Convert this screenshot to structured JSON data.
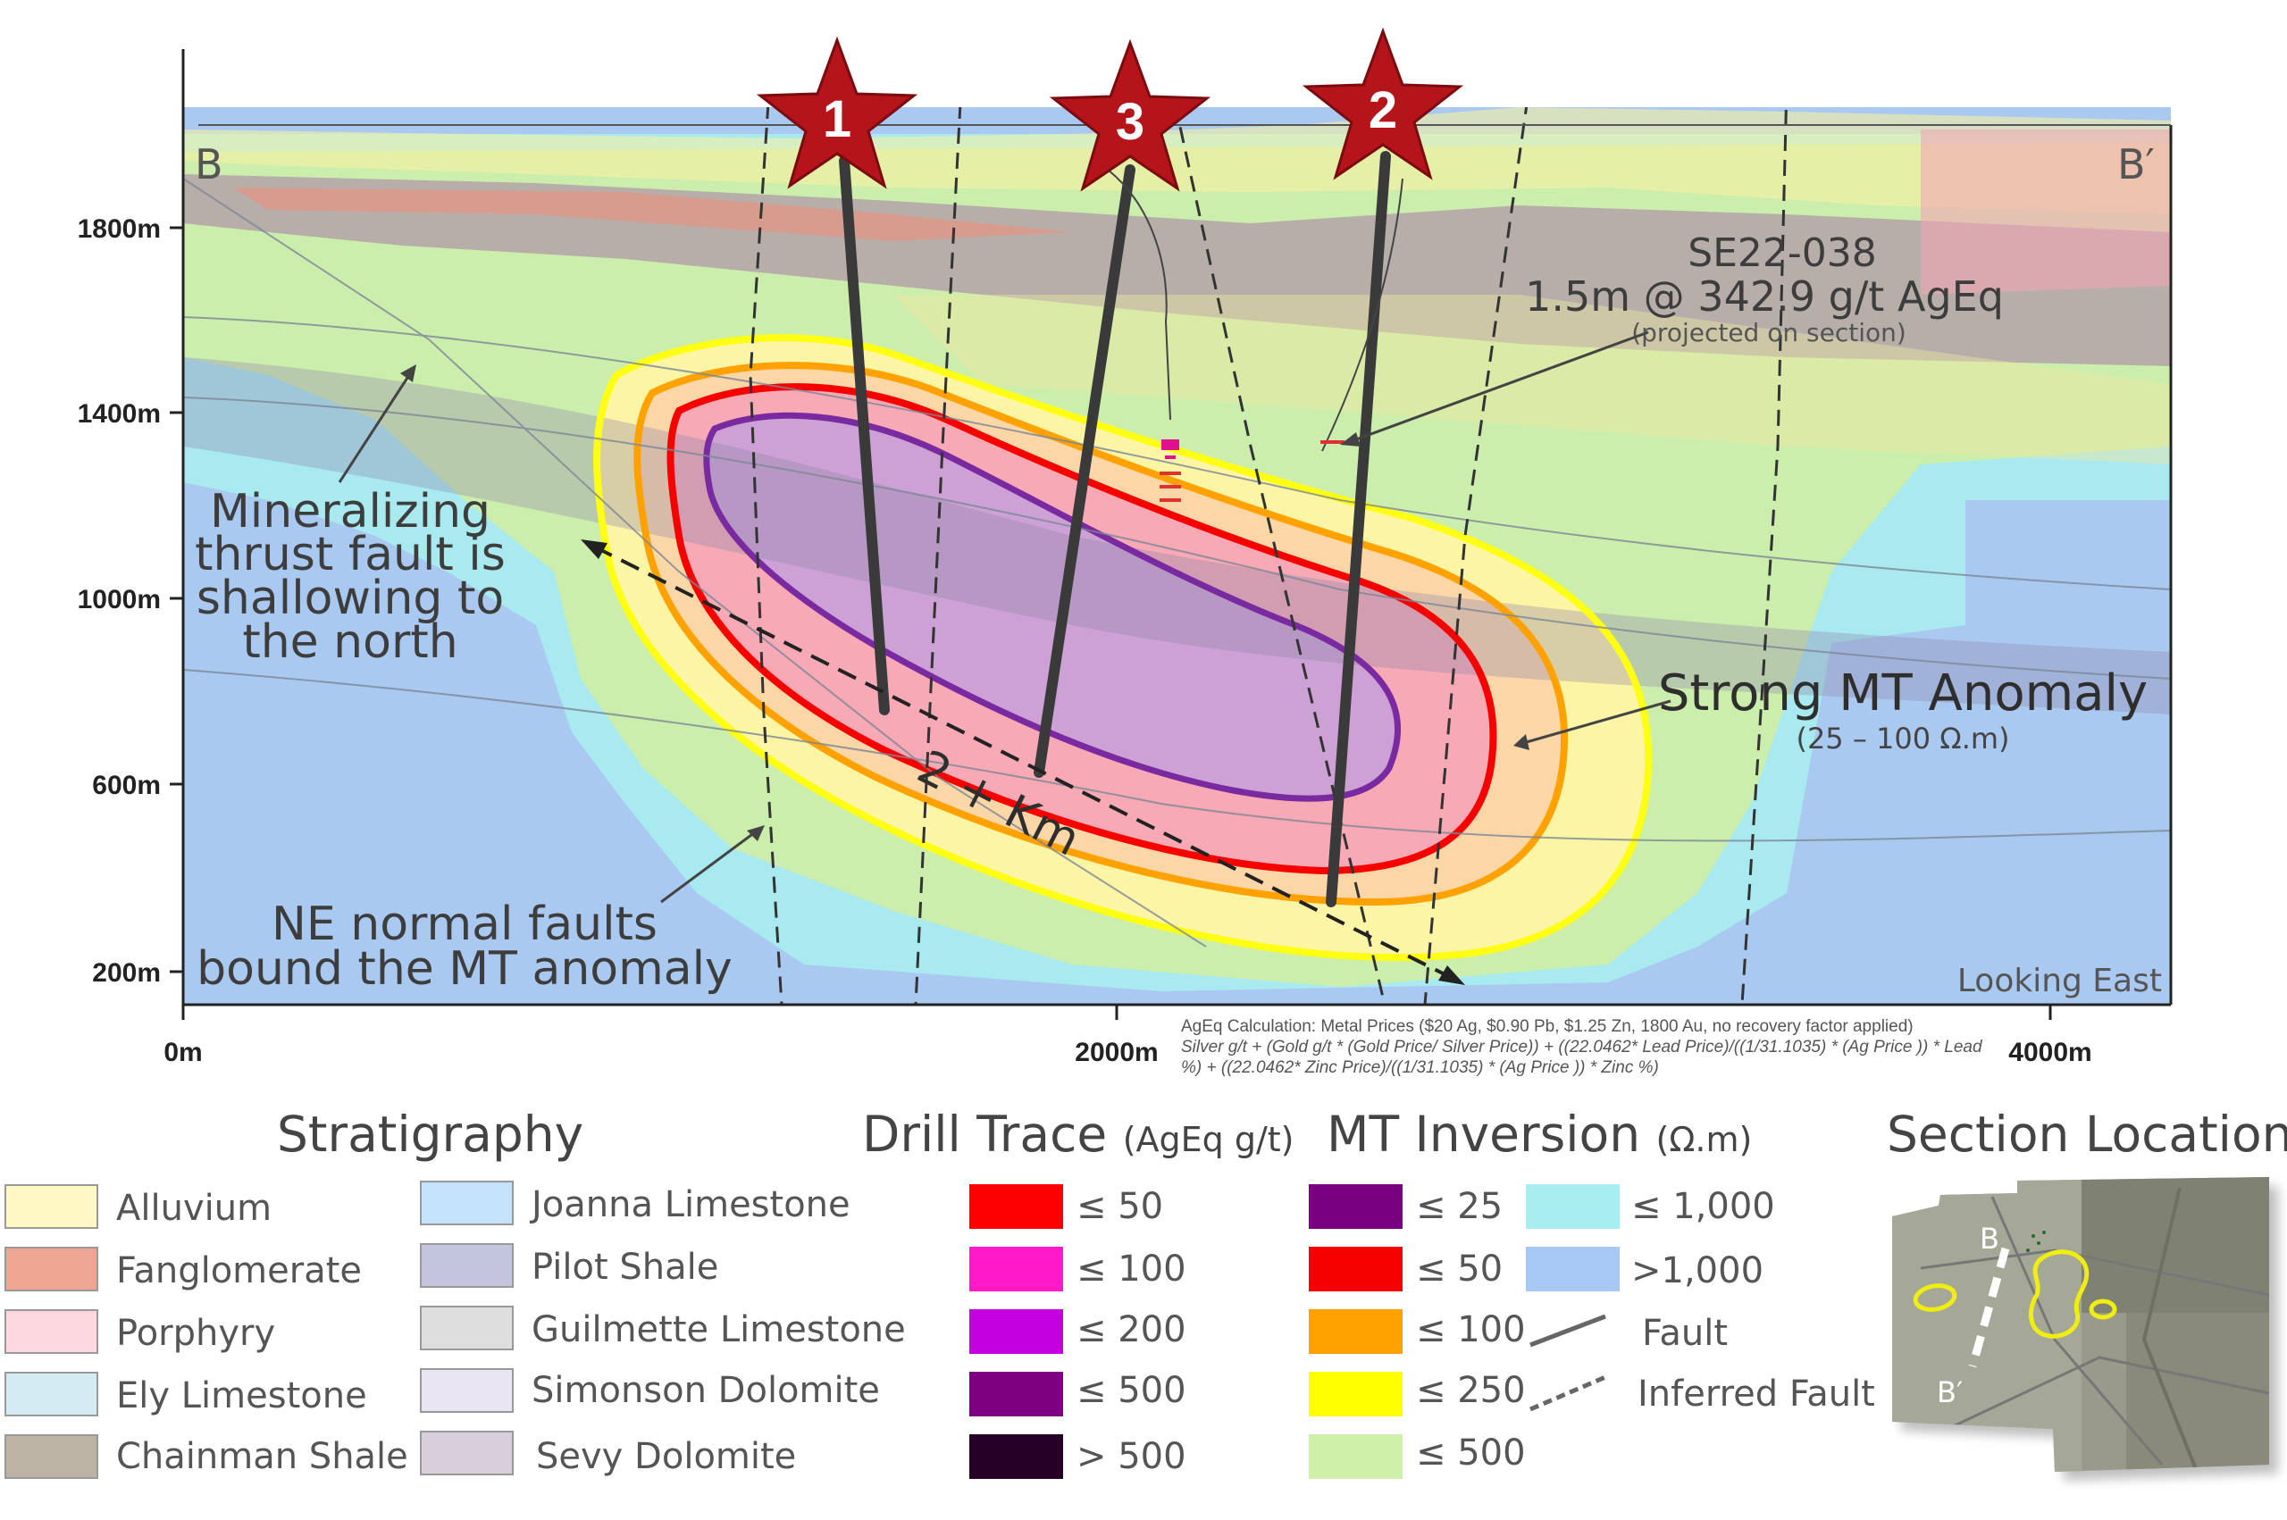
{
  "section": {
    "start_label": "B",
    "end_label": "B′",
    "view_label": "Looking East",
    "y_ticks": [
      "1800m",
      "1400m",
      "1000m",
      "600m",
      "200m"
    ],
    "x_ticks": [
      "0m",
      "2000m",
      "4000m"
    ]
  },
  "drill_holes": [
    {
      "label": "1"
    },
    {
      "label": "3"
    },
    {
      "label": "2"
    }
  ],
  "annotations": {
    "hole_id": "SE22-038",
    "intercept": "1.5m @ 342.9 g/t AgEq",
    "intercept_note": "(projected on section)",
    "thrust_fault": [
      "Mineralizing",
      "thrust fault is",
      "shallowing to",
      "the north"
    ],
    "normal_faults": [
      "NE normal faults",
      "bound the MT anomaly"
    ],
    "anomaly": "Strong MT Anomaly",
    "anomaly_range": "(25 – 100 Ω.m)",
    "length": "2 + Km"
  },
  "ageq_note": {
    "line1": "AgEq Calculation: Metal Prices ($20 Ag, $0.90 Pb, $1.25 Zn, 1800 Au, no recovery factor applied)",
    "line2": "Silver g/t + (Gold g/t * (Gold Price/ Silver Price)) + ((22.0462* Lead Price)/((1/31.1035) * (Ag Price )) * Lead",
    "line3": "%) + ((22.0462* Zinc Price)/((1/31.1035) * (Ag Price )) * Zinc %)"
  },
  "legend": {
    "stratigraphy": {
      "title": "Stratigraphy",
      "items": [
        {
          "label": "Alluvium",
          "color": "#fff7c4"
        },
        {
          "label": "Fanglomerate",
          "color": "#eea592"
        },
        {
          "label": "Porphyry",
          "color": "#fdd8e0"
        },
        {
          "label": "Ely Limestone",
          "color": "#d2ecf1"
        },
        {
          "label": "Chainman Shale",
          "color": "#bdb3a4"
        },
        {
          "label": "Joanna Limestone",
          "color": "#c4e2fb"
        },
        {
          "label": "Pilot Shale",
          "color": "#c3c5dc"
        },
        {
          "label": "Guilmette Limestone",
          "color": "#dedede"
        },
        {
          "label": "Simonson Dolomite",
          "color": "#e9e5f2"
        },
        {
          "label": "Sevy Dolomite",
          "color": "#d9cfdc"
        }
      ]
    },
    "drill_trace": {
      "title": "Drill Trace",
      "unit": "(AgEq g/t)",
      "items": [
        {
          "label": "≤ 50",
          "color": "#ff0000"
        },
        {
          "label": "≤ 100",
          "color": "#ff19c8"
        },
        {
          "label": "≤ 200",
          "color": "#c400e0"
        },
        {
          "label": "≤ 500",
          "color": "#7c0080"
        },
        {
          "label": "> 500",
          "color": "#260026"
        }
      ]
    },
    "mt_inversion": {
      "title": "MT Inversion",
      "unit": "(Ω.m)",
      "items": [
        {
          "label": "≤ 25",
          "color": "#7a0082"
        },
        {
          "label": "≤ 50",
          "color": "#f70000"
        },
        {
          "label": "≤ 100",
          "color": "#ffa200"
        },
        {
          "label": "≤ 250",
          "color": "#ffff00"
        },
        {
          "label": "≤ 500",
          "color": "#cff0a8"
        },
        {
          "label": "≤ 1,000",
          "color": "#a8eef0"
        },
        {
          "label": ">1,000",
          "color": "#a7c8f2"
        }
      ],
      "fault_label": "Fault",
      "inferred_fault_label": "Inferred Fault"
    },
    "section_location": {
      "title": "Section Location",
      "start_label": "B",
      "end_label": "B′"
    }
  }
}
